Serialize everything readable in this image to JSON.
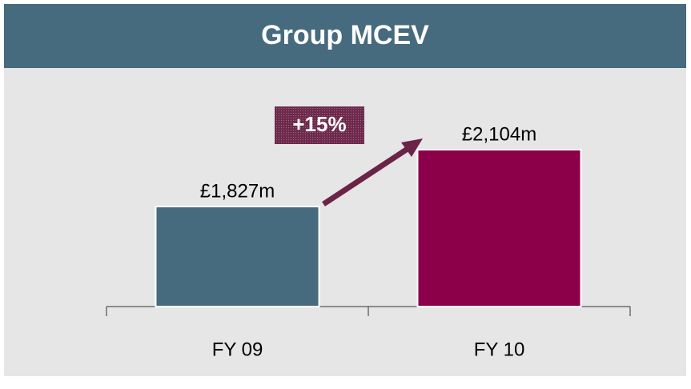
{
  "chart_data": {
    "type": "bar",
    "title": "Group MCEV",
    "categories": [
      "FY 09",
      "FY 10"
    ],
    "values": [
      1827,
      2104
    ],
    "value_labels": [
      "£1,827m",
      "£2,104m"
    ],
    "colors": [
      "#466a7e",
      "#8c0049"
    ],
    "ylim": [
      1340,
      2400
    ],
    "annotation": "+15%"
  }
}
